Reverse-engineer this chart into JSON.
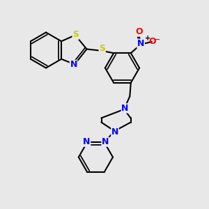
{
  "bg_color": "#e8e8e8",
  "bond_color": "#000000",
  "N_color": "#0000ff",
  "S_color": "#cccc00",
  "O_color": "#ff0000",
  "nitro_N_color": "#0000ff",
  "nitro_plus_color": "#000000",
  "nitro_minus_color": "#ff0000",
  "line_width": 1.5,
  "figsize": [
    3.0,
    3.0
  ],
  "dpi": 100,
  "xlim": [
    0,
    10
  ],
  "ylim": [
    0,
    10
  ]
}
